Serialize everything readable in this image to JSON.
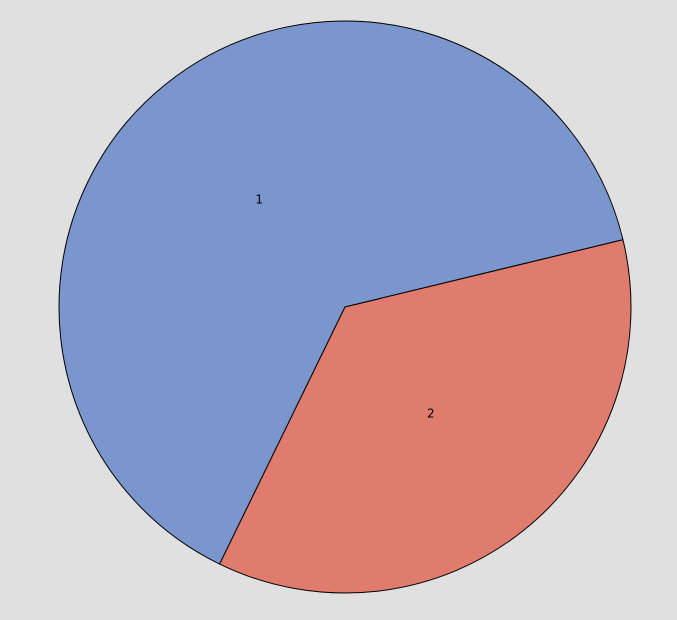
{
  "chart_data": {
    "type": "pie",
    "categories": [
      "1",
      "2"
    ],
    "values": [
      64,
      36
    ],
    "colors": [
      "#7b96cc",
      "#df7c6e"
    ],
    "start_angle_deg": 244,
    "direction": "clockwise",
    "outline_color": "#000000",
    "background": "#e0e0e0",
    "legend": "none"
  }
}
